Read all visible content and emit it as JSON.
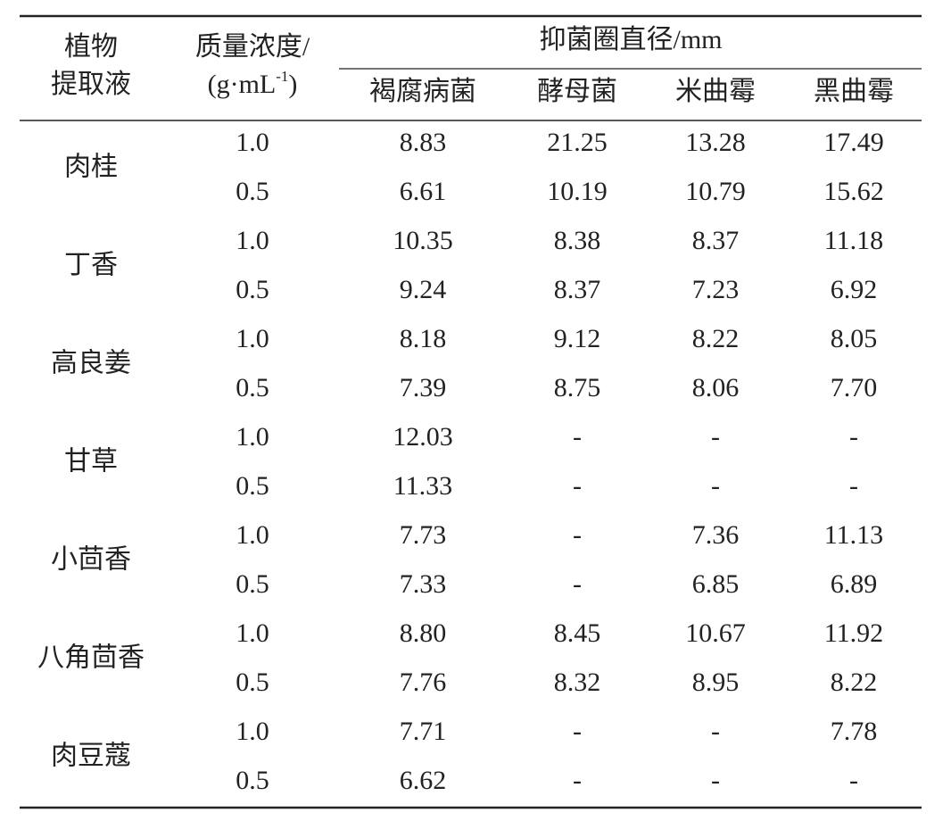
{
  "table": {
    "header": {
      "plant": [
        "植物",
        "提取液"
      ],
      "concentration": {
        "line1": "质量浓度/",
        "prefix": "(g·mL",
        "sup": "-1",
        "suffix": ")"
      },
      "group": "抑菌圈直径/mm",
      "columns": [
        "褐腐病菌",
        "酵母菌",
        "米曲霉",
        "黑曲霉"
      ]
    },
    "rows": [
      {
        "plant": "肉桂",
        "data": [
          [
            "1.0",
            "8.83",
            "21.25",
            "13.28",
            "17.49"
          ],
          [
            "0.5",
            "6.61",
            "10.19",
            "10.79",
            "15.62"
          ]
        ]
      },
      {
        "plant": "丁香",
        "data": [
          [
            "1.0",
            "10.35",
            "8.38",
            "8.37",
            "11.18"
          ],
          [
            "0.5",
            "9.24",
            "8.37",
            "7.23",
            "6.92"
          ]
        ]
      },
      {
        "plant": "高良姜",
        "data": [
          [
            "1.0",
            "8.18",
            "9.12",
            "8.22",
            "8.05"
          ],
          [
            "0.5",
            "7.39",
            "8.75",
            "8.06",
            "7.70"
          ]
        ]
      },
      {
        "plant": "甘草",
        "data": [
          [
            "1.0",
            "12.03",
            "-",
            "-",
            "-"
          ],
          [
            "0.5",
            "11.33",
            "-",
            "-",
            "-"
          ]
        ]
      },
      {
        "plant": "小茴香",
        "data": [
          [
            "1.0",
            "7.73",
            "-",
            "7.36",
            "11.13"
          ],
          [
            "0.5",
            "7.33",
            "-",
            "6.85",
            "6.89"
          ]
        ]
      },
      {
        "plant": "八角茴香",
        "data": [
          [
            "1.0",
            "8.80",
            "8.45",
            "10.67",
            "11.92"
          ],
          [
            "0.5",
            "7.76",
            "8.32",
            "8.95",
            "8.22"
          ]
        ]
      },
      {
        "plant": "肉豆蔻",
        "data": [
          [
            "1.0",
            "7.71",
            "-",
            "-",
            "7.78"
          ],
          [
            "0.5",
            "6.62",
            "-",
            "-",
            "-"
          ]
        ]
      }
    ]
  }
}
